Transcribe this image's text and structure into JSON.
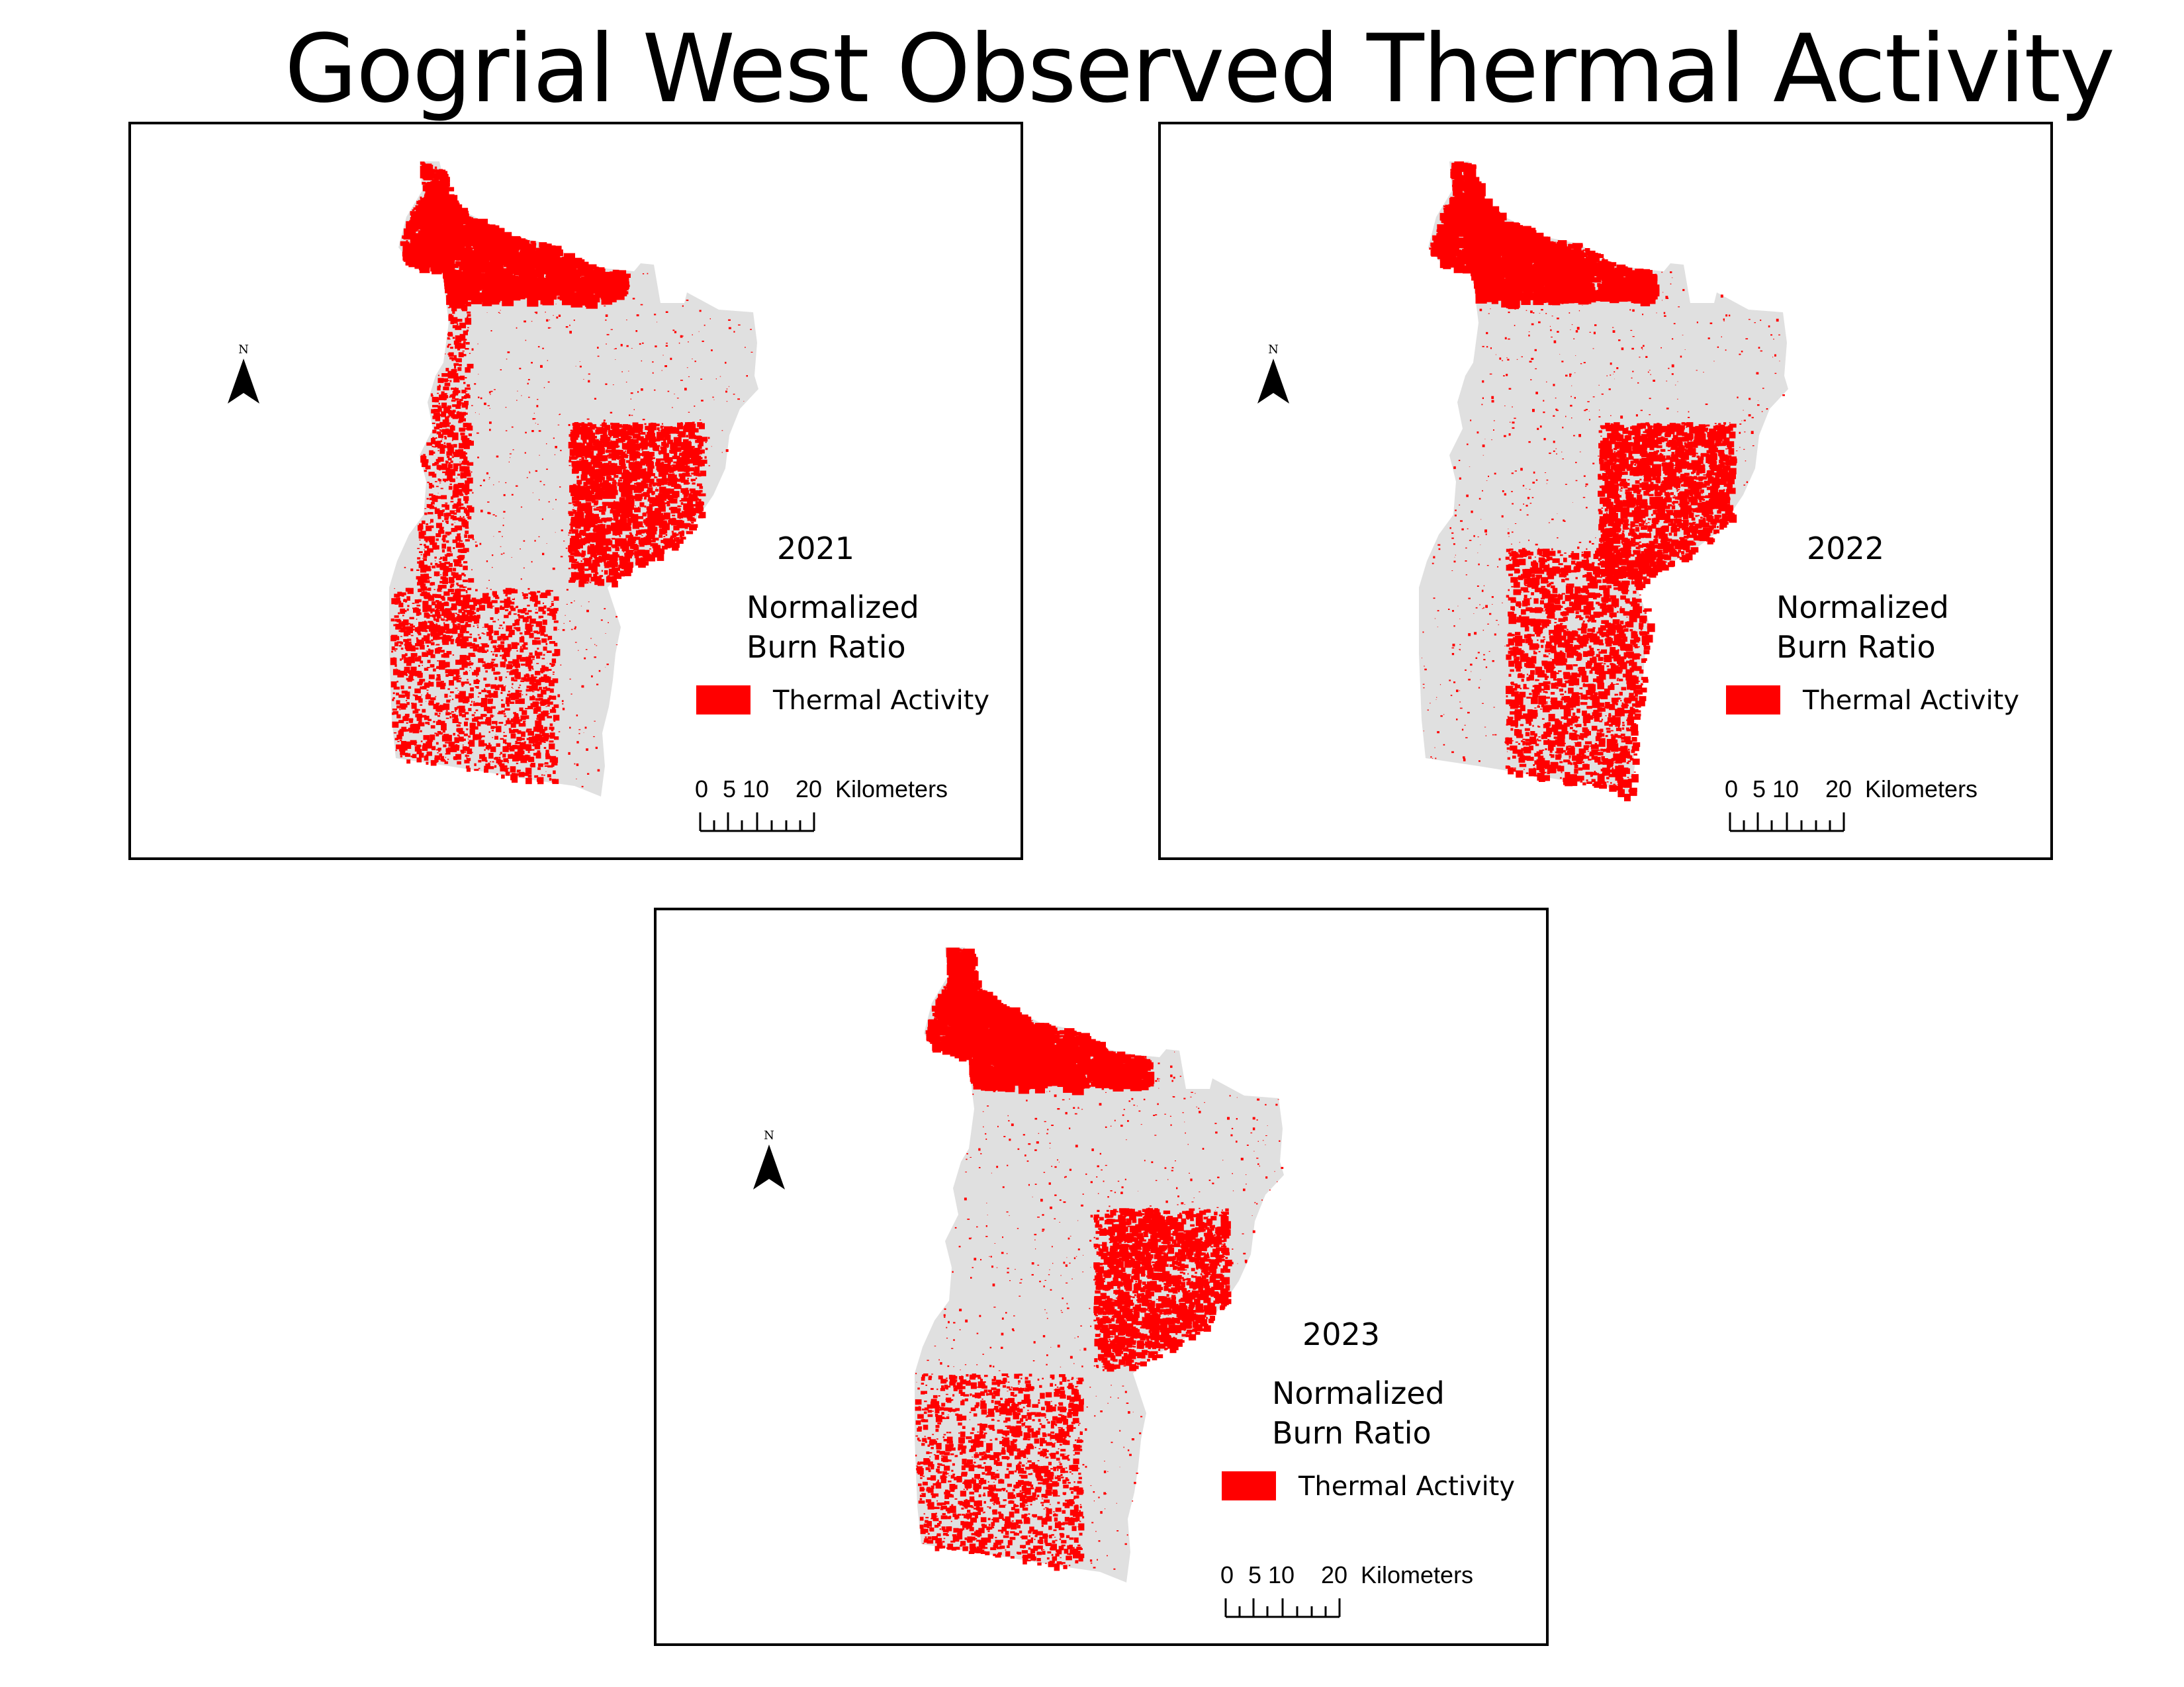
{
  "title": "Gogrial West Observed Thermal Activity",
  "colors": {
    "thermal_activity": "#ff0000",
    "region_fill": "#e0e0e0",
    "frame": "#000000"
  },
  "maps": [
    {
      "year": "2021",
      "legend_title_line1": "Normalized",
      "legend_title_line2": "Burn Ratio",
      "legend_item": "Thermal Activity",
      "north_label": "N",
      "scale": {
        "t0": "0",
        "t5": "5",
        "t10": "10",
        "t20": "20",
        "unit": "Kilometers"
      },
      "hotspots": [
        "north",
        "east-middle",
        "west-edge",
        "south-west"
      ]
    },
    {
      "year": "2022",
      "legend_title_line1": "Normalized",
      "legend_title_line2": "Burn Ratio",
      "legend_item": "Thermal Activity",
      "north_label": "N",
      "scale": {
        "t0": "0",
        "t5": "5",
        "t10": "10",
        "t20": "20",
        "unit": "Kilometers"
      },
      "hotspots": [
        "north",
        "east-middle",
        "south-center"
      ]
    },
    {
      "year": "2023",
      "legend_title_line1": "Normalized",
      "legend_title_line2": "Burn Ratio",
      "legend_item": "Thermal Activity",
      "north_label": "N",
      "scale": {
        "t0": "0",
        "t5": "5",
        "t10": "10",
        "t20": "20",
        "unit": "Kilometers"
      },
      "hotspots": [
        "north",
        "east-middle",
        "south-west"
      ]
    }
  ]
}
